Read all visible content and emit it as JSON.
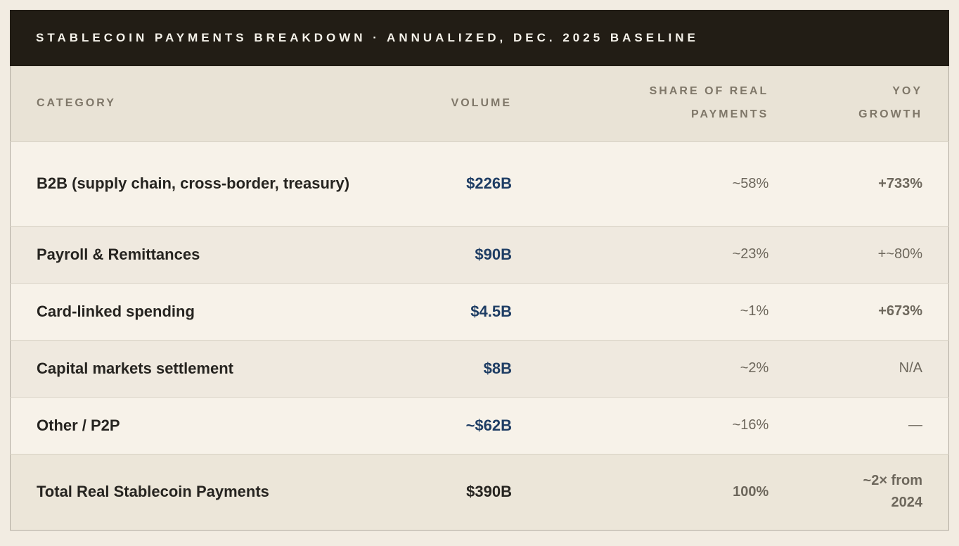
{
  "title": "STABLECOIN PAYMENTS BREAKDOWN · ANNUALIZED, DEC. 2025 BASELINE",
  "columns": {
    "category": "CATEGORY",
    "volume": "VOLUME",
    "share_line1": "SHARE OF REAL",
    "share_line2": "PAYMENTS",
    "yoy_line1": "YOY",
    "yoy_line2": "GROWTH"
  },
  "rows": [
    {
      "category": "B2B (supply chain, cross-border, treasury)",
      "volume": "$226B",
      "share": "~58%",
      "yoy": "+733%"
    },
    {
      "category": "Payroll & Remittances",
      "volume": "$90B",
      "share": "~23%",
      "yoy": "+~80%"
    },
    {
      "category": "Card-linked spending",
      "volume": "$4.5B",
      "share": "~1%",
      "yoy": "+673%"
    },
    {
      "category": "Capital markets settlement",
      "volume": "$8B",
      "share": "~2%",
      "yoy": "N/A"
    },
    {
      "category": "Other / P2P",
      "volume": "~$62B",
      "share": "~16%",
      "yoy": "—"
    }
  ],
  "total": {
    "category": "Total Real Stablecoin Payments",
    "volume": "$390B",
    "share": "100%",
    "yoy_line1": "~2× from",
    "yoy_line2": "2024"
  },
  "colors": {
    "page_background": "#f2ece2",
    "title_bar_background": "#221d15",
    "title_text": "#f5f2ea",
    "header_row_background": "#e9e3d6",
    "header_text": "#7f7769",
    "row_light_background": "#f7f2e9",
    "row_alt_background": "#efe9df",
    "total_row_background": "#ece6d9",
    "category_text": "#262420",
    "volume_accent": "#1e3d64",
    "positive_growth_navy": "#1e3d64",
    "positive_growth_rust": "#9f341f",
    "muted_value_text": "#6d675c",
    "row_divider": "#d8d2c5",
    "table_border": "#b1aba0"
  },
  "chart_data": {
    "type": "table",
    "title": "Stablecoin Payments Breakdown · Annualized, Dec. 2025 Baseline",
    "columns": [
      "Category",
      "Volume",
      "Share of Real Payments",
      "YoY Growth"
    ],
    "rows": [
      [
        "B2B (supply chain, cross-border, treasury)",
        "$226B",
        "~58%",
        "+733%"
      ],
      [
        "Payroll & Remittances",
        "$90B",
        "~23%",
        "+~80%"
      ],
      [
        "Card-linked spending",
        "$4.5B",
        "~1%",
        "+673%"
      ],
      [
        "Capital markets settlement",
        "$8B",
        "~2%",
        "N/A"
      ],
      [
        "Other / P2P",
        "~$62B",
        "~16%",
        "—"
      ],
      [
        "Total Real Stablecoin Payments",
        "$390B",
        "100%",
        "~2× from 2024"
      ]
    ],
    "volume_values_billions_usd": [
      226,
      90,
      4.5,
      8,
      62,
      390
    ],
    "share_values_pct": [
      58,
      23,
      1,
      2,
      16,
      100
    ]
  }
}
